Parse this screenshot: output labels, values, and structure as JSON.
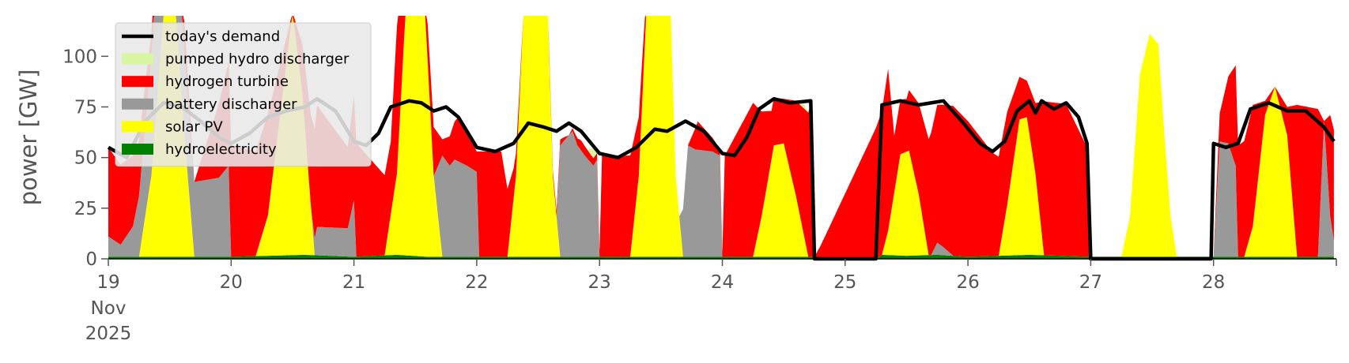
{
  "chart_data": {
    "type": "area",
    "title": "",
    "xlabel": "",
    "ylabel": "power [GW]",
    "x_start_date": "2025-11-19",
    "xlim": [
      19,
      29
    ],
    "ylim": [
      0,
      120
    ],
    "x_ticks": [
      {
        "value": 19,
        "label": "19",
        "sub1": "Nov",
        "sub2": "2025"
      },
      {
        "value": 20,
        "label": "20"
      },
      {
        "value": 21,
        "label": "21"
      },
      {
        "value": 22,
        "label": "22"
      },
      {
        "value": 23,
        "label": "23"
      },
      {
        "value": 24,
        "label": "24"
      },
      {
        "value": 25,
        "label": "25"
      },
      {
        "value": 26,
        "label": "26"
      },
      {
        "value": 27,
        "label": "27"
      },
      {
        "value": 28,
        "label": "28"
      }
    ],
    "y_ticks": [
      0,
      25,
      50,
      75,
      100
    ],
    "grid": false,
    "legend_position": "top-left",
    "colors": {
      "hydroelectricity": "#008000",
      "solar": "#ffff00",
      "battery": "#999999",
      "hydrogen": "#ff0000",
      "pumped": "#d8f5a2",
      "demand": "#000000",
      "legend_bg": "#e8e8e8"
    },
    "legend": [
      {
        "label": "today's demand",
        "kind": "line",
        "color": "#000000"
      },
      {
        "label": "pumped hydro discharger",
        "kind": "patch",
        "color": "#d8f5a2"
      },
      {
        "label": "hydrogen turbine",
        "kind": "patch",
        "color": "#ff0000"
      },
      {
        "label": "battery discharger",
        "kind": "patch",
        "color": "#999999"
      },
      {
        "label": "solar PV",
        "kind": "patch",
        "color": "#ffff00"
      },
      {
        "label": "hydroelectricity",
        "kind": "patch",
        "color": "#008000"
      }
    ],
    "series_order": [
      "hydroelectricity",
      "solar",
      "battery",
      "hydrogen",
      "pumped"
    ],
    "demand": [
      [
        19.0,
        55
      ],
      [
        19.15,
        50
      ],
      [
        19.3,
        68
      ],
      [
        19.45,
        77
      ],
      [
        19.6,
        75
      ],
      [
        19.75,
        68
      ],
      [
        19.9,
        60
      ],
      [
        20.0,
        57
      ],
      [
        20.15,
        62
      ],
      [
        20.3,
        70
      ],
      [
        20.45,
        73
      ],
      [
        20.6,
        75
      ],
      [
        20.7,
        79
      ],
      [
        20.85,
        73
      ],
      [
        21.0,
        58
      ],
      [
        21.1,
        56
      ],
      [
        21.2,
        62
      ],
      [
        21.3,
        75
      ],
      [
        21.45,
        78
      ],
      [
        21.55,
        77
      ],
      [
        21.65,
        73
      ],
      [
        21.75,
        75
      ],
      [
        21.85,
        70
      ],
      [
        22.0,
        55
      ],
      [
        22.15,
        53
      ],
      [
        22.3,
        57
      ],
      [
        22.42,
        67
      ],
      [
        22.55,
        65
      ],
      [
        22.65,
        63
      ],
      [
        22.75,
        67
      ],
      [
        22.85,
        63
      ],
      [
        23.0,
        52
      ],
      [
        23.15,
        50
      ],
      [
        23.3,
        55
      ],
      [
        23.45,
        64
      ],
      [
        23.55,
        63
      ],
      [
        23.7,
        68
      ],
      [
        23.85,
        63
      ],
      [
        24.0,
        52
      ],
      [
        24.1,
        51
      ],
      [
        24.2,
        60
      ],
      [
        24.3,
        74
      ],
      [
        24.42,
        79
      ],
      [
        24.55,
        77
      ],
      [
        24.72,
        78
      ],
      [
        24.75,
        0
      ],
      [
        25.25,
        0
      ],
      [
        25.3,
        76
      ],
      [
        25.45,
        78
      ],
      [
        25.6,
        76
      ],
      [
        25.8,
        78
      ],
      [
        25.95,
        68
      ],
      [
        26.1,
        57
      ],
      [
        26.2,
        53
      ],
      [
        26.3,
        58
      ],
      [
        26.4,
        73
      ],
      [
        26.5,
        78
      ],
      [
        26.55,
        72
      ],
      [
        26.6,
        78
      ],
      [
        26.7,
        74
      ],
      [
        26.8,
        77
      ],
      [
        26.9,
        70
      ],
      [
        26.97,
        57
      ],
      [
        27.0,
        0
      ],
      [
        27.98,
        0
      ],
      [
        28.0,
        57
      ],
      [
        28.1,
        55
      ],
      [
        28.2,
        57
      ],
      [
        28.3,
        74
      ],
      [
        28.45,
        77
      ],
      [
        28.6,
        73
      ],
      [
        28.75,
        73
      ],
      [
        28.9,
        65
      ],
      [
        28.98,
        58
      ]
    ],
    "series": [
      {
        "name": "hydroelectricity",
        "points": [
          [
            19.0,
            1
          ],
          [
            20.0,
            1
          ],
          [
            20.6,
            2
          ],
          [
            21.0,
            1
          ],
          [
            21.35,
            2
          ],
          [
            21.6,
            1
          ],
          [
            22.3,
            1
          ],
          [
            23.0,
            1
          ],
          [
            24.0,
            1
          ],
          [
            24.75,
            1
          ],
          [
            24.8,
            0
          ],
          [
            25.25,
            0
          ],
          [
            25.3,
            2
          ],
          [
            25.5,
            1.5
          ],
          [
            25.75,
            2
          ],
          [
            26.0,
            1
          ],
          [
            26.5,
            2
          ],
          [
            27.0,
            1
          ],
          [
            27.5,
            1
          ],
          [
            28.0,
            1
          ],
          [
            28.6,
            1
          ],
          [
            29.0,
            1
          ]
        ]
      },
      {
        "name": "solar",
        "points": [
          [
            19.0,
            0
          ],
          [
            19.25,
            0
          ],
          [
            19.35,
            40
          ],
          [
            19.45,
            120
          ],
          [
            19.55,
            120
          ],
          [
            19.62,
            60
          ],
          [
            19.7,
            0
          ],
          [
            20.2,
            0
          ],
          [
            20.3,
            20
          ],
          [
            20.42,
            80
          ],
          [
            20.5,
            120
          ],
          [
            20.58,
            80
          ],
          [
            20.68,
            0
          ],
          [
            21.25,
            0
          ],
          [
            21.35,
            40
          ],
          [
            21.42,
            120
          ],
          [
            21.58,
            120
          ],
          [
            21.65,
            40
          ],
          [
            21.72,
            0
          ],
          [
            22.25,
            0
          ],
          [
            22.32,
            40
          ],
          [
            22.38,
            120
          ],
          [
            22.58,
            120
          ],
          [
            22.62,
            40
          ],
          [
            22.68,
            0
          ],
          [
            23.25,
            0
          ],
          [
            23.32,
            40
          ],
          [
            23.38,
            120
          ],
          [
            23.58,
            120
          ],
          [
            23.62,
            40
          ],
          [
            23.68,
            0
          ],
          [
            24.25,
            0
          ],
          [
            24.32,
            20
          ],
          [
            24.42,
            55
          ],
          [
            24.5,
            56
          ],
          [
            24.6,
            30
          ],
          [
            24.7,
            0
          ],
          [
            25.3,
            0
          ],
          [
            25.35,
            12
          ],
          [
            25.45,
            50
          ],
          [
            25.52,
            52
          ],
          [
            25.6,
            30
          ],
          [
            25.68,
            0
          ],
          [
            26.25,
            0
          ],
          [
            26.32,
            25
          ],
          [
            26.42,
            67
          ],
          [
            26.48,
            68
          ],
          [
            26.55,
            40
          ],
          [
            26.62,
            0
          ],
          [
            27.25,
            0
          ],
          [
            27.32,
            20
          ],
          [
            27.4,
            90
          ],
          [
            27.48,
            110
          ],
          [
            27.55,
            105
          ],
          [
            27.6,
            60
          ],
          [
            27.65,
            20
          ],
          [
            27.7,
            0
          ],
          [
            28.25,
            0
          ],
          [
            28.32,
            15
          ],
          [
            28.42,
            70
          ],
          [
            28.5,
            84
          ],
          [
            28.6,
            60
          ],
          [
            28.68,
            0
          ],
          [
            29.0,
            0
          ]
        ]
      },
      {
        "name": "battery",
        "points": [
          [
            19.0,
            10
          ],
          [
            19.1,
            6
          ],
          [
            19.2,
            15
          ],
          [
            19.3,
            45
          ],
          [
            19.4,
            70
          ],
          [
            19.5,
            75
          ],
          [
            19.62,
            40
          ],
          [
            19.7,
            37
          ],
          [
            19.9,
            39
          ],
          [
            19.98,
            45
          ],
          [
            20.0,
            0
          ],
          [
            20.65,
            0
          ],
          [
            20.7,
            14
          ],
          [
            20.95,
            14
          ],
          [
            21.0,
            28
          ],
          [
            21.02,
            0
          ],
          [
            21.65,
            0
          ],
          [
            21.72,
            50
          ],
          [
            21.78,
            45
          ],
          [
            21.82,
            48
          ],
          [
            21.92,
            45
          ],
          [
            22.0,
            42
          ],
          [
            22.02,
            0
          ],
          [
            22.65,
            0
          ],
          [
            22.68,
            55
          ],
          [
            22.72,
            58
          ],
          [
            22.78,
            62
          ],
          [
            22.82,
            55
          ],
          [
            22.88,
            50
          ],
          [
            22.95,
            45
          ],
          [
            22.98,
            48
          ],
          [
            23.0,
            0
          ],
          [
            23.65,
            0
          ],
          [
            23.72,
            55
          ],
          [
            23.78,
            53
          ],
          [
            23.92,
            52
          ],
          [
            23.98,
            50
          ],
          [
            24.0,
            0
          ],
          [
            25.7,
            0
          ],
          [
            25.75,
            6
          ],
          [
            25.8,
            4
          ],
          [
            25.88,
            0
          ],
          [
            28.0,
            0
          ],
          [
            28.05,
            57
          ],
          [
            28.12,
            56
          ],
          [
            28.18,
            45
          ],
          [
            28.2,
            0
          ],
          [
            28.85,
            0
          ],
          [
            28.9,
            67
          ],
          [
            28.95,
            20
          ],
          [
            29.0,
            0
          ]
        ]
      },
      {
        "name": "hydrogen",
        "points": [
          [
            19.0,
            44
          ],
          [
            19.2,
            35
          ],
          [
            19.4,
            5
          ],
          [
            19.6,
            20
          ],
          [
            19.7,
            0
          ],
          [
            20.0,
            55
          ],
          [
            20.3,
            50
          ],
          [
            20.5,
            0
          ],
          [
            20.7,
            60
          ],
          [
            20.95,
            40
          ],
          [
            21.02,
            56
          ],
          [
            21.3,
            36
          ],
          [
            21.38,
            95
          ],
          [
            21.45,
            0
          ],
          [
            21.65,
            24
          ],
          [
            21.72,
            8
          ],
          [
            21.85,
            22
          ],
          [
            22.0,
            10
          ],
          [
            22.02,
            52
          ],
          [
            22.2,
            52
          ],
          [
            22.3,
            15
          ],
          [
            22.38,
            0
          ],
          [
            22.68,
            3
          ],
          [
            22.75,
            0
          ],
          [
            22.85,
            5
          ],
          [
            23.0,
            3
          ],
          [
            23.02,
            50
          ],
          [
            23.25,
            50
          ],
          [
            23.35,
            20
          ],
          [
            23.4,
            0
          ],
          [
            23.72,
            0
          ],
          [
            23.8,
            14
          ],
          [
            24.0,
            2
          ],
          [
            24.02,
            50
          ],
          [
            24.25,
            76
          ],
          [
            24.4,
            24
          ],
          [
            24.5,
            22
          ],
          [
            24.6,
            47
          ],
          [
            24.72,
            76
          ],
          [
            24.75,
            0
          ],
          [
            25.3,
            71
          ],
          [
            25.35,
            80
          ],
          [
            25.4,
            28
          ],
          [
            25.5,
            26
          ],
          [
            25.6,
            45
          ],
          [
            25.75,
            68
          ],
          [
            25.88,
            74
          ],
          [
            26.0,
            67
          ],
          [
            26.2,
            51
          ],
          [
            26.32,
            46
          ],
          [
            26.42,
            21
          ],
          [
            26.48,
            18
          ],
          [
            26.55,
            35
          ],
          [
            26.62,
            76
          ],
          [
            26.8,
            75
          ],
          [
            26.97,
            54
          ],
          [
            27.0,
            0
          ],
          [
            28.0,
            0
          ],
          [
            28.2,
            55
          ],
          [
            28.32,
            60
          ],
          [
            28.42,
            7
          ],
          [
            28.5,
            0
          ],
          [
            28.6,
            14
          ],
          [
            28.68,
            75
          ],
          [
            28.85,
            73
          ],
          [
            28.9,
            0
          ],
          [
            28.95,
            50
          ],
          [
            29.0,
            58
          ]
        ]
      },
      {
        "name": "pumped",
        "points": [
          [
            19.0,
            0
          ],
          [
            22.9,
            0
          ],
          [
            22.95,
            5
          ],
          [
            23.0,
            0
          ],
          [
            24.6,
            0
          ],
          [
            24.65,
            3
          ],
          [
            24.7,
            0
          ],
          [
            29.0,
            0
          ]
        ]
      }
    ]
  }
}
